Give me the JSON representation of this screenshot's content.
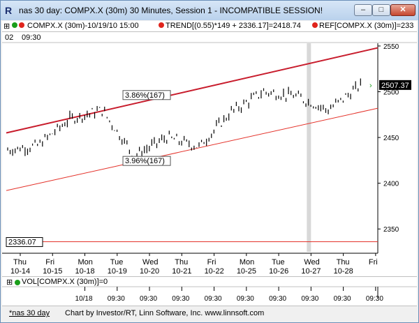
{
  "window": {
    "title": "nas 30 day: COMPX.X (30m) 30 Minutes, Session 1 - INCOMPATIBLE SESSION!",
    "app_icon": "R",
    "buttons": {
      "minimize": "–",
      "maximize": "□",
      "close": "✕"
    }
  },
  "legend": {
    "symbol_label": "COMPX.X (30m)-10/19/10 15:00",
    "trend_label": "TREND[(0.55)*149 + 2336.17]=2418.74",
    "ref_label": "REF[COMPX.X (30m)]=233",
    "time_prefix": "02",
    "time_start": "09:30",
    "colors": {
      "green": "#1a9e1a",
      "red": "#e0241c"
    }
  },
  "chart_data": {
    "type": "candlestick",
    "y_ticks": [
      2550,
      2500,
      2450,
      2400,
      2350
    ],
    "ylim": [
      2325,
      2553
    ],
    "current_price_label": "2507.37",
    "reference_line_label": "2336.07",
    "reference_line_value": 2336.07,
    "annotations": [
      {
        "text": "3.86%(167)"
      },
      {
        "text": "3.96%(167)"
      }
    ],
    "x_days": [
      {
        "dow": "Thu",
        "date": "10-14"
      },
      {
        "dow": "Fri",
        "date": "10-15"
      },
      {
        "dow": "Mon",
        "date": "10-18"
      },
      {
        "dow": "Tue",
        "date": "10-19"
      },
      {
        "dow": "Wed",
        "date": "10-20"
      },
      {
        "dow": "Thu",
        "date": "10-21"
      },
      {
        "dow": "Fri",
        "date": "10-22"
      },
      {
        "dow": "Mon",
        "date": "10-25"
      },
      {
        "dow": "Tue",
        "date": "10-26"
      },
      {
        "dow": "Wed",
        "date": "10-27"
      },
      {
        "dow": "Thu",
        "date": "10-28"
      },
      {
        "dow": "Fri",
        "date": ""
      }
    ],
    "session_close": [
      2441,
      2470,
      2480,
      2430,
      2450,
      2440,
      2478,
      2500,
      2495,
      2480,
      2507
    ],
    "channel_upper_start": 2455,
    "channel_upper_end": 2548,
    "channel_lower_start": 2392,
    "channel_lower_end": 2482,
    "colors": {
      "channel": "#c81c2c",
      "lower_line": "#e4322a",
      "price": "#000000",
      "highlight": "#d8d8d8",
      "ref_line": "#e4322a"
    }
  },
  "volume": {
    "label": "VOL[COMPX.X (30m)]=0",
    "x_ticks": [
      "10/18",
      "09:30",
      "09:30",
      "09:30",
      "09:30",
      "09:30",
      "09:30",
      "09:30",
      "09:30",
      "09:30"
    ]
  },
  "footer": {
    "tab_label": "*nas 30 day",
    "credit": "Chart by Investor/RT, Linn Software, Inc. www.linnsoft.com"
  }
}
